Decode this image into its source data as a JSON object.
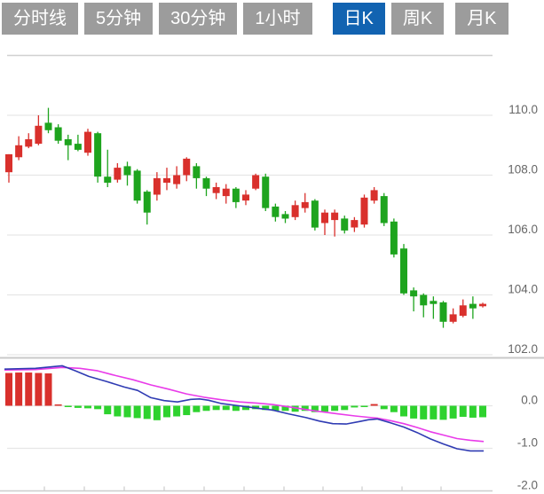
{
  "tabs": {
    "items": [
      {
        "label": "分时线",
        "active": false
      },
      {
        "label": "5分钟",
        "active": false
      },
      {
        "label": "30分钟",
        "active": false
      },
      {
        "label": "1小时",
        "active": false
      },
      {
        "label": "日K",
        "active": true
      },
      {
        "label": "周K",
        "active": false
      },
      {
        "label": "月K",
        "active": false
      }
    ]
  },
  "chart_data": {
    "type": "candlestick",
    "title": "",
    "xlabel": "",
    "ylabel": "",
    "upper_axis": {
      "tick_labels": [
        "110.0",
        "108.0",
        "106.0",
        "104.0",
        "102.0"
      ],
      "ticks": [
        110.0,
        108.0,
        106.0,
        104.0,
        102.0
      ],
      "range": [
        101.8,
        112.0
      ]
    },
    "lower_axis": {
      "tick_labels": [
        "0.0",
        "-1.0",
        "-2.0"
      ],
      "ticks": [
        0.0,
        -1.0,
        -2.0
      ],
      "range": [
        -2.0,
        1.1
      ]
    },
    "x_ticks": [
      50,
      95,
      140,
      185,
      230,
      275,
      320,
      364,
      408,
      453,
      497
    ],
    "candles_ohlc_note": "arrays are [open, high, low, close]; close>=open renders red (up), else green (down)",
    "candles": [
      [
        108.1,
        108.7,
        107.75,
        108.7
      ],
      [
        108.6,
        109.3,
        108.5,
        109.0
      ],
      [
        108.95,
        109.4,
        108.9,
        109.2
      ],
      [
        109.05,
        110.0,
        109.0,
        109.65
      ],
      [
        109.75,
        110.25,
        109.4,
        109.5
      ],
      [
        109.6,
        109.7,
        109.05,
        109.15
      ],
      [
        109.2,
        109.35,
        108.5,
        109.0
      ],
      [
        109.05,
        109.35,
        108.8,
        108.85
      ],
      [
        108.75,
        109.55,
        108.65,
        109.45
      ],
      [
        109.4,
        109.45,
        107.75,
        107.95
      ],
      [
        107.95,
        108.85,
        107.6,
        107.75
      ],
      [
        107.85,
        108.4,
        107.75,
        108.25
      ],
      [
        108.3,
        108.45,
        107.65,
        108.0
      ],
      [
        108.15,
        108.2,
        107.05,
        107.15
      ],
      [
        107.45,
        107.5,
        106.35,
        106.75
      ],
      [
        107.35,
        108.1,
        107.15,
        107.9
      ],
      [
        107.75,
        108.25,
        107.5,
        107.9
      ],
      [
        107.7,
        108.3,
        107.55,
        108.0
      ],
      [
        108.0,
        108.6,
        107.8,
        108.55
      ],
      [
        108.3,
        108.4,
        107.55,
        107.9
      ],
      [
        107.9,
        107.95,
        107.3,
        107.55
      ],
      [
        107.4,
        107.75,
        107.2,
        107.6
      ],
      [
        107.3,
        107.7,
        107.05,
        107.55
      ],
      [
        107.55,
        107.6,
        106.9,
        107.1
      ],
      [
        107.15,
        107.5,
        107.0,
        107.35
      ],
      [
        107.55,
        108.05,
        107.5,
        108.0
      ],
      [
        107.95,
        108.05,
        106.8,
        106.9
      ],
      [
        106.95,
        107.05,
        106.45,
        106.6
      ],
      [
        106.7,
        106.8,
        106.4,
        106.55
      ],
      [
        106.6,
        107.15,
        106.5,
        107.0
      ],
      [
        106.9,
        107.4,
        106.75,
        107.1
      ],
      [
        107.15,
        107.2,
        106.15,
        106.25
      ],
      [
        106.4,
        106.85,
        106.0,
        106.75
      ],
      [
        106.5,
        106.85,
        105.95,
        106.75
      ],
      [
        106.55,
        106.65,
        106.05,
        106.15
      ],
      [
        106.25,
        106.6,
        106.1,
        106.5
      ],
      [
        106.35,
        107.35,
        106.25,
        107.25
      ],
      [
        107.15,
        107.6,
        107.05,
        107.5
      ],
      [
        107.3,
        107.4,
        106.3,
        106.4
      ],
      [
        106.45,
        106.55,
        105.25,
        105.35
      ],
      [
        105.55,
        105.7,
        104.0,
        104.05
      ],
      [
        104.15,
        104.25,
        103.45,
        103.95
      ],
      [
        104.0,
        104.05,
        103.25,
        103.65
      ],
      [
        103.8,
        103.95,
        103.2,
        103.7
      ],
      [
        103.75,
        103.8,
        102.9,
        103.1
      ],
      [
        103.1,
        103.55,
        103.05,
        103.35
      ],
      [
        103.3,
        103.85,
        103.25,
        103.65
      ],
      [
        103.7,
        103.95,
        103.2,
        103.55
      ],
      [
        103.62,
        103.74,
        103.58,
        103.7
      ]
    ],
    "macd": {
      "histogram": [
        0.77,
        0.78,
        0.78,
        0.77,
        0.76,
        0.02,
        -0.03,
        -0.05,
        -0.06,
        -0.08,
        -0.2,
        -0.25,
        -0.27,
        -0.29,
        -0.31,
        -0.34,
        -0.27,
        -0.25,
        -0.22,
        -0.15,
        -0.12,
        -0.1,
        -0.1,
        -0.12,
        -0.1,
        -0.08,
        -0.1,
        -0.12,
        -0.12,
        -0.14,
        -0.12,
        -0.15,
        -0.14,
        -0.12,
        -0.1,
        -0.04,
        -0.02,
        0.04,
        -0.08,
        -0.15,
        -0.25,
        -0.3,
        -0.32,
        -0.32,
        -0.33,
        -0.3,
        -0.26,
        -0.28,
        -0.27
      ],
      "dif_line": [
        [
          5,
          0.86
        ],
        [
          40,
          0.88
        ],
        [
          70,
          0.94
        ],
        [
          85,
          0.82
        ],
        [
          100,
          0.69
        ],
        [
          120,
          0.57
        ],
        [
          140,
          0.44
        ],
        [
          155,
          0.36
        ],
        [
          170,
          0.19
        ],
        [
          185,
          0.12
        ],
        [
          200,
          0.09
        ],
        [
          215,
          0.15
        ],
        [
          225,
          0.16
        ],
        [
          235,
          0.13
        ],
        [
          250,
          0.05
        ],
        [
          265,
          0.01
        ],
        [
          280,
          -0.03
        ],
        [
          295,
          -0.07
        ],
        [
          307,
          -0.1
        ],
        [
          325,
          -0.19
        ],
        [
          345,
          -0.28
        ],
        [
          360,
          -0.36
        ],
        [
          375,
          -0.42
        ],
        [
          390,
          -0.43
        ],
        [
          405,
          -0.37
        ],
        [
          415,
          -0.33
        ],
        [
          425,
          -0.31
        ],
        [
          440,
          -0.4
        ],
        [
          455,
          -0.5
        ],
        [
          470,
          -0.63
        ],
        [
          485,
          -0.78
        ],
        [
          500,
          -0.9
        ],
        [
          515,
          -1.01
        ],
        [
          530,
          -1.06
        ],
        [
          545,
          -1.06
        ]
      ],
      "dea_line": [
        [
          5,
          0.84
        ],
        [
          40,
          0.85
        ],
        [
          70,
          0.9
        ],
        [
          90,
          0.88
        ],
        [
          110,
          0.82
        ],
        [
          130,
          0.71
        ],
        [
          150,
          0.61
        ],
        [
          170,
          0.49
        ],
        [
          190,
          0.39
        ],
        [
          210,
          0.28
        ],
        [
          230,
          0.2
        ],
        [
          250,
          0.14
        ],
        [
          270,
          0.09
        ],
        [
          290,
          0.06
        ],
        [
          307,
          0.03
        ],
        [
          330,
          -0.04
        ],
        [
          355,
          -0.12
        ],
        [
          380,
          -0.19
        ],
        [
          400,
          -0.24
        ],
        [
          415,
          -0.27
        ],
        [
          425,
          -0.29
        ],
        [
          440,
          -0.35
        ],
        [
          455,
          -0.42
        ],
        [
          470,
          -0.51
        ],
        [
          485,
          -0.61
        ],
        [
          500,
          -0.69
        ],
        [
          515,
          -0.77
        ],
        [
          530,
          -0.81
        ],
        [
          545,
          -0.84
        ]
      ]
    },
    "colors": {
      "up": "#d9302c",
      "down": "#1ea41e",
      "hist_up": "#d9302c",
      "hist_down": "#2ed22e",
      "dif": "#2f3bb3",
      "dea": "#e93be9",
      "grid": "#e6e6e6",
      "border": "#d0d0d0",
      "separator": "#c8c8c8",
      "axis": "#cccccc",
      "label": "#666666",
      "tab_bg": "#9c9c9c",
      "tab_active_bg": "#1263b1",
      "tab_text": "#ffffff"
    }
  }
}
